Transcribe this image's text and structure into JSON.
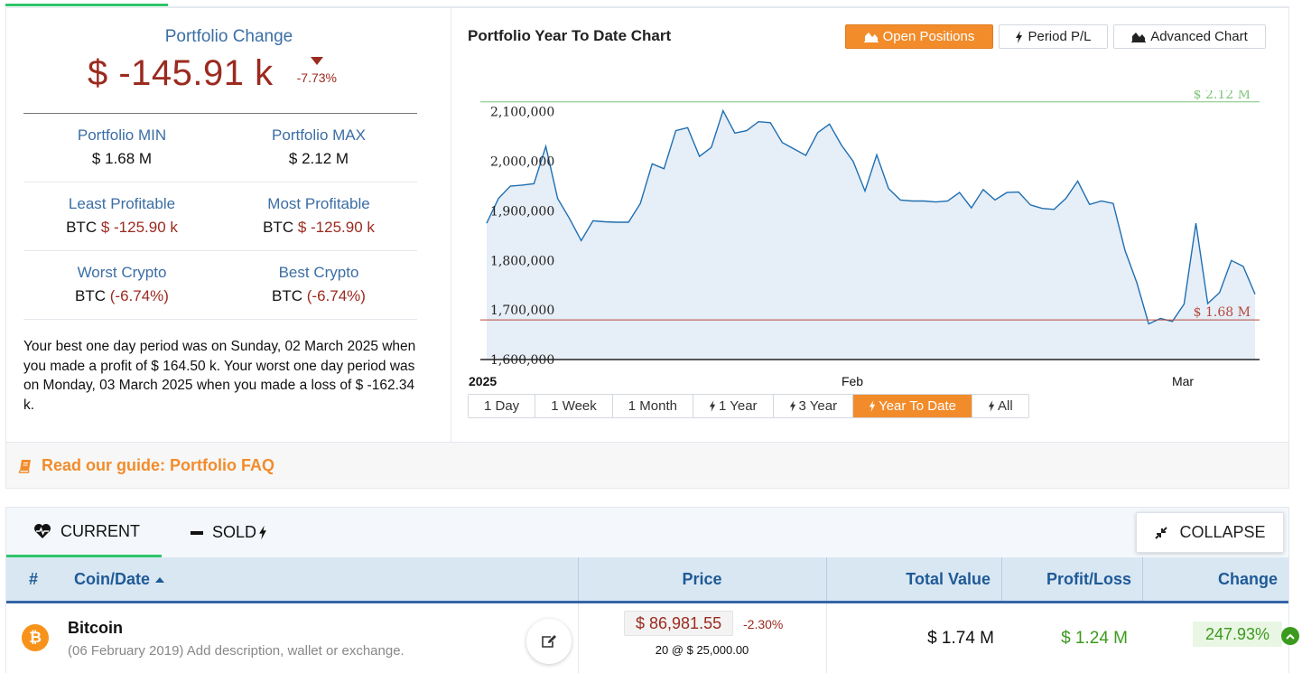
{
  "summary_panel": {
    "title": "Portfolio Change",
    "value": "$ -145.91 k",
    "percent": "-7.73%",
    "stats": [
      {
        "left_label": "Portfolio MIN",
        "left_value": "$ 1.68 M",
        "right_label": "Portfolio MAX",
        "right_value": "$ 2.12 M"
      },
      {
        "left_label": "Least Profitable",
        "left_coin": "BTC",
        "left_value": "$ -125.90 k",
        "right_label": "Most Profitable",
        "right_coin": "BTC",
        "right_value": "$ -125.90 k"
      },
      {
        "left_label": "Worst Crypto",
        "left_coin": "BTC",
        "left_value": "(-6.74%)",
        "right_label": "Best Crypto",
        "right_coin": "BTC",
        "right_value": "(-6.74%)"
      }
    ],
    "best_worst_text": "Your best one day period was on Sunday, 02 March 2025 when you made a profit of $ 164.50 k. Your worst one day period was on Monday, 03 March 2025 when you made a loss of $ -162.34 k."
  },
  "chart": {
    "title": "Portfolio Year To Date Chart",
    "buttons": {
      "open_positions": "Open Positions",
      "period_pl": "Period P/L",
      "advanced_chart": "Advanced Chart"
    },
    "ranges": [
      "1 Day",
      "1 Week",
      "1 Month",
      "1 Year",
      "3 Year",
      "Year To Date",
      "All"
    ],
    "active_range": "Year To Date"
  },
  "guide": {
    "label": "Read our guide: Portfolio FAQ"
  },
  "positions": {
    "tabs": {
      "current": "CURRENT",
      "sold": "SOLD"
    },
    "collapse_label": "COLLAPSE",
    "columns": {
      "num": "#",
      "coin_date": "Coin/Date",
      "price": "Price",
      "total_value": "Total Value",
      "profit_loss": "Profit/Loss",
      "change": "Change"
    },
    "rows": [
      {
        "coin": "Bitcoin",
        "icon_letter": "₿",
        "subtitle": "(06 February 2019) Add description, wallet or exchange.",
        "price": "$ 86,981.55",
        "price_change": "-2.30%",
        "holding": "20 @ $ 25,000.00",
        "total_value": "$ 1.74 M",
        "profit_loss": "$ 1.24 M",
        "change": "247.93%"
      }
    ]
  },
  "colors": {
    "accent": "#f28c2b",
    "negative": "#9b2a1f",
    "positive": "#3c9a1e",
    "label_blue": "#3b6ea5",
    "line": "#1f6fb2",
    "area": "#e6eef7"
  },
  "chart_data": {
    "type": "area",
    "title": "Portfolio Year To Date Chart",
    "xlabel": "",
    "ylabel": "",
    "x_tick_labels": [
      "2025",
      "Feb",
      "Mar"
    ],
    "y_tick_labels": [
      "1,600,000",
      "1,700,000",
      "1,800,000",
      "1,900,000",
      "2,000,000",
      "2,100,000"
    ],
    "ylim": [
      1600000,
      2125000
    ],
    "reference_lines": [
      {
        "label": "$ 2.12 M",
        "value": 2120000,
        "color": "#7cc47c"
      },
      {
        "label": "$ 1.68 M",
        "value": 1680000,
        "color": "#b5483b"
      }
    ],
    "grid": false,
    "series": [
      {
        "values": [
          1875000,
          1925000,
          1950000,
          1952000,
          1955000,
          2030000,
          1925000,
          1885000,
          1840000,
          1880000,
          1878000,
          1877000,
          1877000,
          1915000,
          1995000,
          1985000,
          2062000,
          2068000,
          2010000,
          2028000,
          2102000,
          2057000,
          2062000,
          2080000,
          2078000,
          2038000,
          2025000,
          2012000,
          2058000,
          2075000,
          2033000,
          2000000,
          1940000,
          2013000,
          1945000,
          1922000,
          1920000,
          1920000,
          1918000,
          1920000,
          1937000,
          1906000,
          1943000,
          1922000,
          1937000,
          1938000,
          1912000,
          1905000,
          1903000,
          1925000,
          1960000,
          1913000,
          1920000,
          1915000,
          1820000,
          1755000,
          1672000,
          1683000,
          1677000,
          1712000,
          1875000,
          1713000,
          1735000,
          1800000,
          1788000,
          1732000
        ]
      }
    ]
  }
}
